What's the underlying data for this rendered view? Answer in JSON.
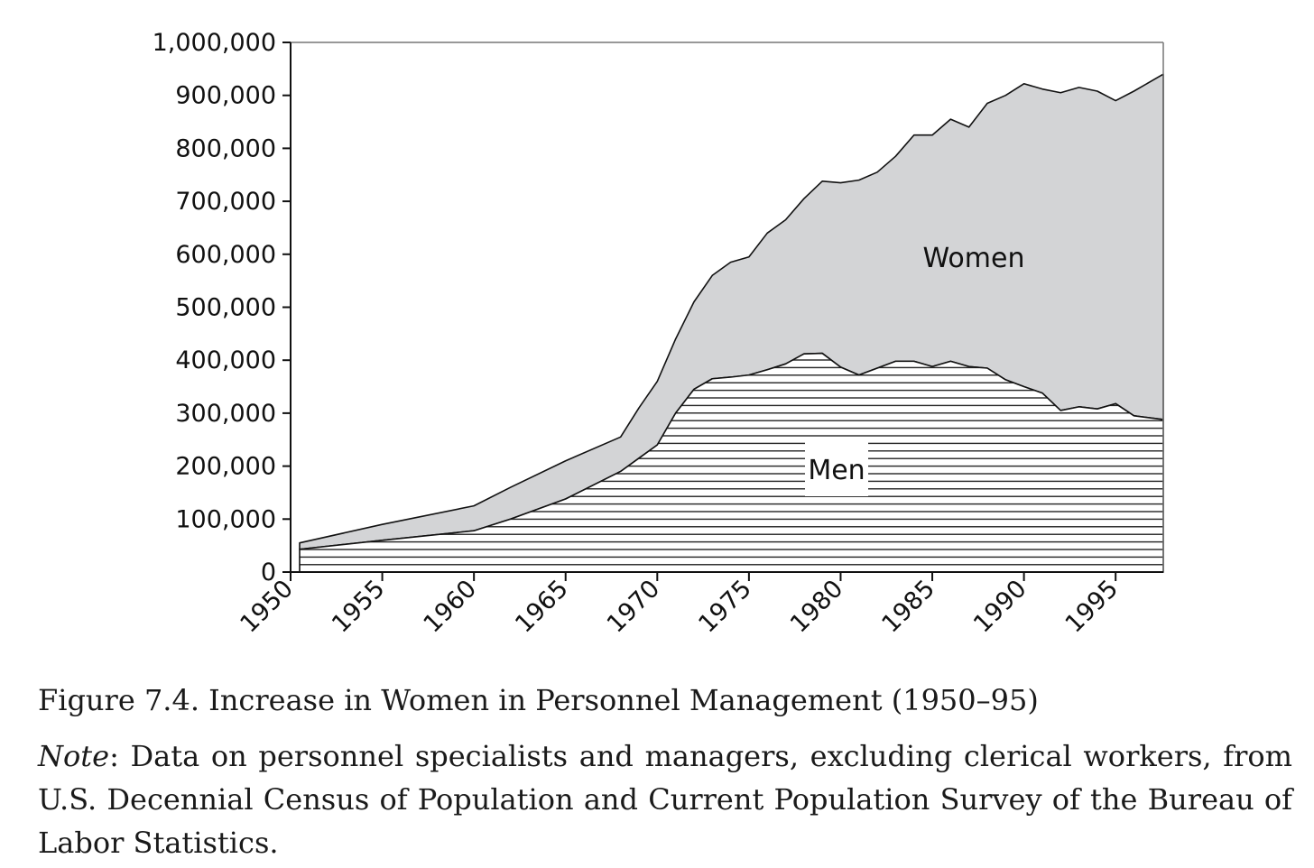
{
  "chart_data": {
    "type": "area",
    "stacked": true,
    "x": [
      1950,
      1955,
      1960,
      1962,
      1965,
      1968,
      1969,
      1970,
      1971,
      1972,
      1973,
      1974,
      1975,
      1976,
      1977,
      1978,
      1979,
      1980,
      1981,
      1982,
      1983,
      1984,
      1985,
      1986,
      1987,
      1988,
      1989,
      1990,
      1991,
      1992,
      1993,
      1994,
      1995,
      1996,
      1997
    ],
    "series": [
      {
        "name": "Men",
        "pattern": "horizontal-hatch",
        "values": [
          43000,
          60000,
          78000,
          100000,
          138000,
          190000,
          215000,
          240000,
          300000,
          345000,
          365000,
          368000,
          372000,
          382000,
          393000,
          412000,
          413000,
          387000,
          372000,
          385000,
          398000,
          398000,
          388000,
          398000,
          388000,
          385000,
          363000,
          350000,
          338000,
          305000,
          312000,
          308000,
          318000,
          295000,
          288000
        ]
      },
      {
        "name": "Women",
        "color": "#d3d4d6",
        "total_values": [
          55000,
          90000,
          125000,
          160000,
          210000,
          255000,
          310000,
          360000,
          440000,
          510000,
          560000,
          585000,
          595000,
          640000,
          665000,
          705000,
          738000,
          735000,
          740000,
          755000,
          785000,
          825000,
          825000,
          855000,
          840000,
          885000,
          900000,
          922000,
          912000,
          905000,
          915000,
          908000,
          890000,
          908000,
          940000
        ]
      }
    ],
    "yticks": [
      "0",
      "100,000",
      "200,000",
      "300,000",
      "400,000",
      "500,000",
      "600,000",
      "700,000",
      "800,000",
      "900,000",
      "1,000,000"
    ],
    "xticks": [
      "1950",
      "1955",
      "1960",
      "1965",
      "1970",
      "1975",
      "1980",
      "1985",
      "1990",
      "1995"
    ],
    "ylim": [
      0,
      1000000
    ],
    "xlim": [
      1950,
      1997.6
    ],
    "grid": false,
    "legend": "inline labels",
    "title": "",
    "xlabel": "",
    "ylabel": ""
  },
  "caption": {
    "title": "Figure 7.4. Increase in Women in Personnel Management (1950–95)",
    "note_label": "Note",
    "note_text": ": Data on personnel specialists and managers, excluding clerical workers, from U.S. Decennial Census of Population and Current Population Survey of the Bureau of Labor Statistics."
  }
}
